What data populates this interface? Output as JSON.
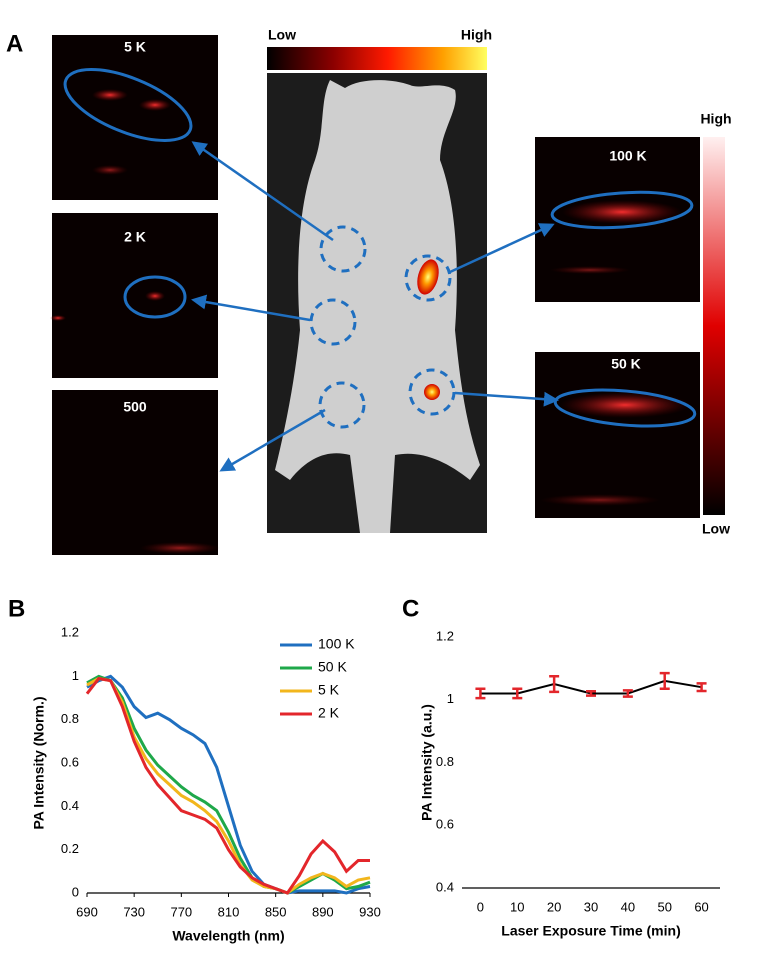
{
  "panel_labels": [
    "A",
    "B",
    "C"
  ],
  "panel_a": {
    "top_colorbar": {
      "low": "Low",
      "high": "High"
    },
    "right_colorbar": {
      "high": "High",
      "low": "Low"
    },
    "image_labels": [
      "5 K",
      "2 K",
      "500",
      "100 K",
      "50 K"
    ]
  },
  "chart_data": [
    {
      "type": "line",
      "y_label": "PA Intensity (Norm.)",
      "x_label": "Wavelength (nm)",
      "x": [
        690,
        700,
        710,
        720,
        730,
        740,
        750,
        760,
        770,
        780,
        790,
        800,
        810,
        820,
        830,
        840,
        850,
        860,
        870,
        880,
        890,
        900,
        910,
        920,
        930
      ],
      "series": [
        {
          "name": "100 K",
          "color": "#1f6fc0",
          "values": [
            0.95,
            0.98,
            1.0,
            0.95,
            0.86,
            0.81,
            0.83,
            0.8,
            0.76,
            0.73,
            0.69,
            0.58,
            0.4,
            0.22,
            0.1,
            0.04,
            0.02,
            0.0,
            0.01,
            0.01,
            0.01,
            0.01,
            0.0,
            0.02,
            0.03
          ]
        },
        {
          "name": "50 K",
          "color": "#1fa84a",
          "values": [
            0.97,
            1.0,
            0.98,
            0.9,
            0.76,
            0.66,
            0.59,
            0.54,
            0.49,
            0.45,
            0.42,
            0.38,
            0.28,
            0.16,
            0.07,
            0.03,
            0.02,
            0.0,
            0.03,
            0.06,
            0.09,
            0.06,
            0.02,
            0.03,
            0.05
          ]
        },
        {
          "name": "5 K",
          "color": "#f2b61c",
          "values": [
            0.96,
            0.99,
            0.98,
            0.88,
            0.72,
            0.62,
            0.55,
            0.5,
            0.45,
            0.42,
            0.38,
            0.33,
            0.24,
            0.13,
            0.06,
            0.03,
            0.02,
            0.0,
            0.04,
            0.07,
            0.09,
            0.07,
            0.03,
            0.06,
            0.07
          ]
        },
        {
          "name": "2 K",
          "color": "#e3262b",
          "values": [
            0.92,
            0.99,
            0.98,
            0.86,
            0.7,
            0.58,
            0.5,
            0.44,
            0.38,
            0.36,
            0.34,
            0.3,
            0.2,
            0.12,
            0.07,
            0.04,
            0.02,
            0.0,
            0.08,
            0.18,
            0.24,
            0.19,
            0.1,
            0.15,
            0.15
          ]
        }
      ],
      "xlim": [
        690,
        930
      ],
      "xticks": [
        690,
        730,
        770,
        810,
        850,
        890,
        930
      ],
      "ylim": [
        0,
        1.2
      ],
      "yticks": [
        0,
        0.2,
        0.4,
        0.6,
        0.8,
        1,
        1.2
      ],
      "legend": "upper right",
      "grid": false
    },
    {
      "type": "line",
      "y_label": "PA Intensity (a.u.)",
      "x_label": "Laser Exposure Time (min)",
      "categories": [
        "0",
        "10",
        "20",
        "30",
        "40",
        "50",
        "60"
      ],
      "series": [
        {
          "color": "#000000",
          "error_color": "#e3262b",
          "values": [
            1.02,
            1.02,
            1.05,
            1.02,
            1.02,
            1.06,
            1.04
          ],
          "errors": [
            0.015,
            0.015,
            0.025,
            0.007,
            0.01,
            0.025,
            0.012
          ]
        }
      ],
      "ylim": [
        0.4,
        1.2
      ],
      "yticks": [
        0.4,
        0.6,
        0.8,
        1,
        1.2
      ],
      "grid": false
    }
  ]
}
